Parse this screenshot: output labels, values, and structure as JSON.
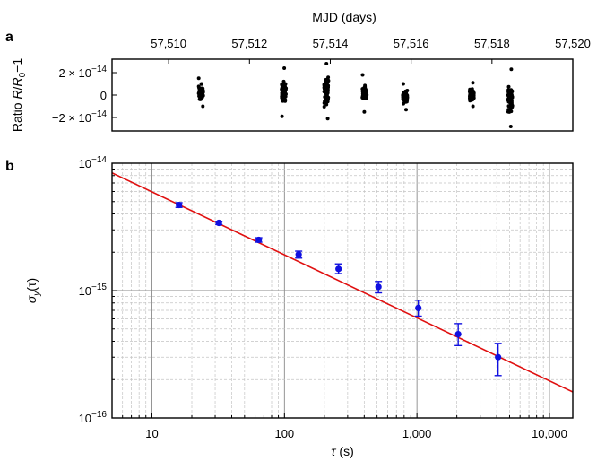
{
  "figure": {
    "panel_a_label": "a",
    "panel_b_label": "b"
  },
  "chart_data": [
    {
      "panel": "a",
      "type": "scatter",
      "title": "",
      "xlabel": "MJD (days)",
      "ylabel": "Ratio R/R0−1",
      "ylabel_parts": {
        "prefix": "Ratio ",
        "R1": "R",
        "slash": "/",
        "R0": "R",
        "sub0": "0",
        "suffix": "−1"
      },
      "xlim": [
        57508.6,
        57520.0
      ],
      "ylim": [
        -3.2e-14,
        3.2e-14
      ],
      "x_ticks": [
        57510,
        57512,
        57514,
        57516,
        57518,
        57520
      ],
      "x_tick_labels": [
        "57,510",
        "57,512",
        "57,514",
        "57,516",
        "57,518",
        "57,520"
      ],
      "y_ticks": [
        2e-14,
        0,
        -2e-14
      ],
      "y_tick_labels": [
        {
          "mant": "2 × 10",
          "exp": "−14"
        },
        {
          "mant": "0",
          "exp": ""
        },
        {
          "mant": "−2 × 10",
          "exp": "−14"
        }
      ],
      "marker_color": "#000000",
      "series": [
        {
          "x_center": 57510.8,
          "y_min": -1e-14,
          "y_max": 1.5e-14
        },
        {
          "x_center": 57512.85,
          "y_min": -1.9e-14,
          "y_max": 2.4e-14
        },
        {
          "x_center": 57513.9,
          "y_min": -2.1e-14,
          "y_max": 2.8e-14
        },
        {
          "x_center": 57514.85,
          "y_min": -1.5e-14,
          "y_max": 1.8e-14
        },
        {
          "x_center": 57515.85,
          "y_min": -1.3e-14,
          "y_max": 1e-14
        },
        {
          "x_center": 57517.5,
          "y_min": -1e-14,
          "y_max": 1.1e-14
        },
        {
          "x_center": 57518.45,
          "y_min": -2.8e-14,
          "y_max": 2.3e-14
        }
      ]
    },
    {
      "panel": "b",
      "type": "scatter",
      "title": "",
      "xlabel": "τ (s)",
      "xlabel_parts": {
        "tau": "τ",
        "unit": " (s)"
      },
      "ylabel": "σy(τ)",
      "ylabel_parts": {
        "sigma": "σ",
        "sub": "y",
        "rest": "(τ)"
      },
      "x_scale": "log",
      "y_scale": "log",
      "xlim": [
        5,
        15000
      ],
      "ylim": [
        1e-16,
        1e-14
      ],
      "grid": true,
      "x_ticks": [
        10,
        100,
        1000,
        10000
      ],
      "x_tick_labels": [
        "10",
        "100",
        "1,000",
        "10,000"
      ],
      "y_ticks": [
        1e-14,
        1e-15,
        1e-16
      ],
      "y_tick_labels": [
        {
          "mant": "10",
          "exp": "−14"
        },
        {
          "mant": "10",
          "exp": "−15"
        },
        {
          "mant": "10",
          "exp": "−16"
        }
      ],
      "points": {
        "color": "#1010e0",
        "x": [
          16,
          32,
          64,
          128,
          256,
          512,
          1024,
          2048,
          4096
        ],
        "y": [
          4.7e-15,
          3.4e-15,
          2.5e-15,
          1.92e-15,
          1.48e-15,
          1.07e-15,
          7.3e-16,
          4.55e-16,
          3e-16
        ],
        "y_err_low": [
          4.5e-15,
          3.3e-15,
          2.4e-15,
          1.8e-15,
          1.36e-15,
          9.6e-16,
          6.3e-16,
          3.7e-16,
          2.15e-16
        ],
        "y_err_high": [
          4.9e-15,
          3.5e-15,
          2.6e-15,
          2.04e-15,
          1.62e-15,
          1.18e-15,
          8.4e-16,
          5.5e-16,
          3.85e-16
        ]
      },
      "fit_line": {
        "color": "#e01010",
        "x": [
          5,
          15000
        ],
        "y": [
          8.4e-15,
          1.6e-16
        ]
      }
    }
  ]
}
